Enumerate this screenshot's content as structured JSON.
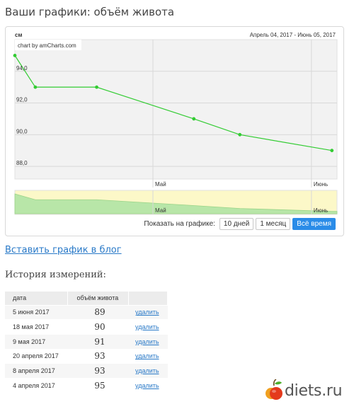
{
  "page": {
    "title": "Ваши графики: объём живота"
  },
  "chart": {
    "unit_label": "см",
    "date_range": "Апрель 04, 2017 - Июнь 05, 2017",
    "credit": "chart by amCharts.com",
    "y_ticks": [
      "94,0",
      "92,0",
      "90,0",
      "88,0"
    ],
    "x_ticks": [
      "Май",
      "Июнь"
    ],
    "scroll_ticks": [
      "Май",
      "Июнь"
    ],
    "line_color": "#33cc33"
  },
  "chart_data": {
    "type": "line",
    "x": [
      "2017-04-04",
      "2017-04-08",
      "2017-04-20",
      "2017-05-09",
      "2017-05-18",
      "2017-06-05"
    ],
    "series": [
      {
        "values": [
          95,
          93,
          93,
          91,
          90,
          89
        ]
      }
    ],
    "ylabel": "см",
    "ylim": [
      87.2,
      96
    ],
    "grid": true
  },
  "controls": {
    "label": "Показать на графике:",
    "buttons": [
      "10 дней",
      "1 месяц",
      "Всё время"
    ],
    "active": "Всё время"
  },
  "links": {
    "blog": "Вставить график в блог"
  },
  "history": {
    "title": "История измерений:",
    "headers": [
      "дата",
      "объём живота",
      ""
    ],
    "rows": [
      {
        "date": "5 июня 2017",
        "value": "89",
        "action": "удалить"
      },
      {
        "date": "18 мая 2017",
        "value": "90",
        "action": "удалить"
      },
      {
        "date": "9 мая 2017",
        "value": "91",
        "action": "удалить"
      },
      {
        "date": "20 апреля 2017",
        "value": "93",
        "action": "удалить"
      },
      {
        "date": "8 апреля 2017",
        "value": "93",
        "action": "удалить"
      },
      {
        "date": "4 апреля 2017",
        "value": "95",
        "action": "удалить"
      }
    ]
  },
  "logo": {
    "text": "diets.ru",
    "icon": "apple-icon"
  }
}
